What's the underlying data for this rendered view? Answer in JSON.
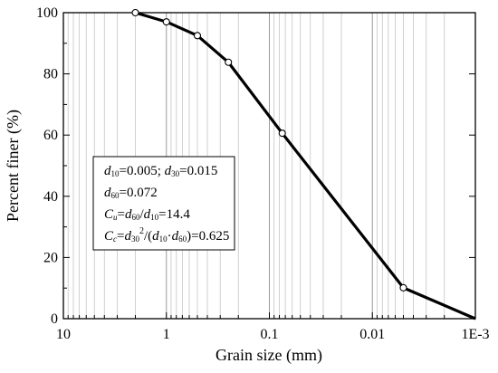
{
  "chart_data": {
    "type": "line",
    "xlabel": "Grain size (mm)",
    "ylabel": "Percent finer (%)",
    "x_scale": "log",
    "x_reversed": true,
    "xlim": [
      10,
      0.001
    ],
    "ylim": [
      0,
      100
    ],
    "x_ticks": [
      10,
      1,
      0.1,
      0.01,
      0.001
    ],
    "x_tick_labels": [
      "10",
      "1",
      "0.1",
      "0.01",
      "1E-3"
    ],
    "y_ticks": [
      0,
      20,
      40,
      60,
      80,
      100
    ],
    "y_tick_labels": [
      "0",
      "20",
      "40",
      "60",
      "80",
      "100"
    ],
    "grid": "vertical log minor and major",
    "series": [
      {
        "x": [
          2,
          1,
          0.5,
          0.25,
          0.075,
          0.005,
          0.001
        ],
        "y": [
          100,
          97,
          92.5,
          83.8,
          60.6,
          10.1,
          0
        ],
        "marker": "open-circle",
        "marked_points": [
          0,
          1,
          2,
          3,
          4,
          5
        ]
      }
    ],
    "annotation": {
      "lines": [
        "d10=0.005; d30=0.015",
        "d60=0.072",
        "Cu=d60/d10=14.4",
        "Cc=d30^2/(d10·d60)=0.625"
      ]
    }
  }
}
